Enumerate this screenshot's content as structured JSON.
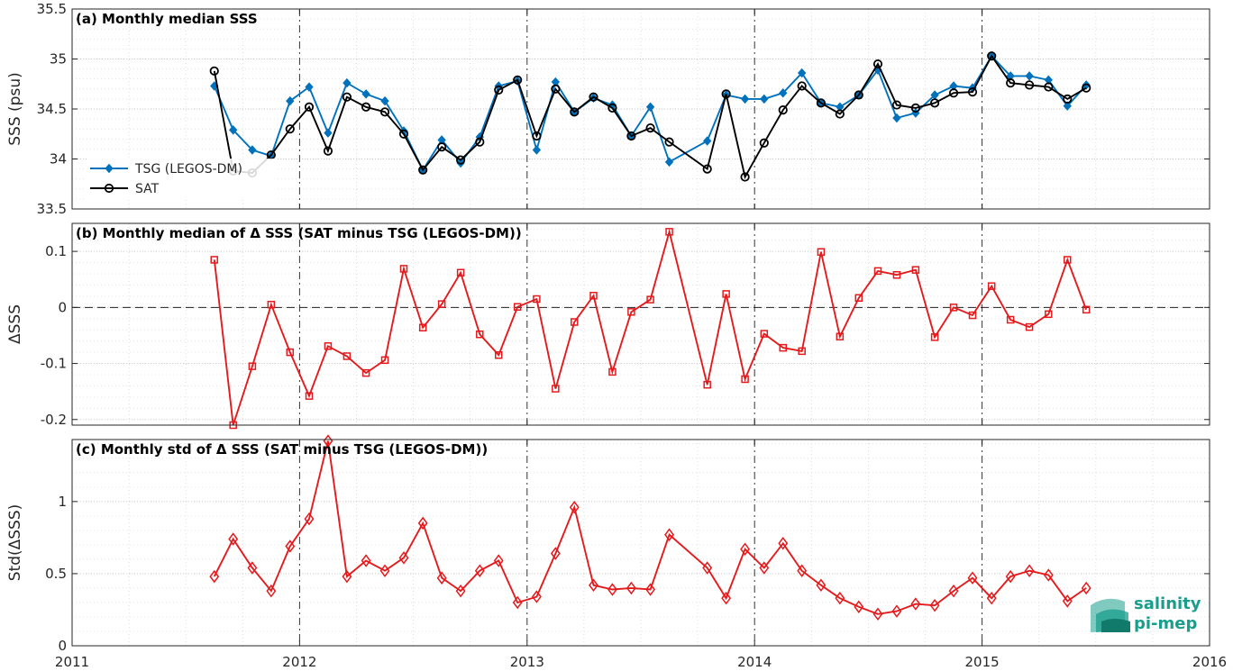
{
  "x_ticks": [
    "2011",
    "2012",
    "2013",
    "2014",
    "2015",
    "2016"
  ],
  "logo": {
    "line1": "salinity",
    "line2": "pi-mep",
    "color": "#1a9e8c"
  },
  "colors": {
    "tsg": "#0072bd",
    "sat": "#000000",
    "delta": "#e41a1c"
  },
  "chart_data": [
    {
      "type": "line",
      "title": "(a) Monthly median SSS",
      "ylabel": "SSS (psu)",
      "xlim": [
        2011,
        2016
      ],
      "ylim": [
        33.5,
        35.5
      ],
      "yticks": [
        33.5,
        34,
        34.5,
        35,
        35.5
      ],
      "ytick_labels": [
        "33.5",
        "34",
        "34.5",
        "35",
        "35.5"
      ],
      "grid": true,
      "legend_position": "left",
      "x": [
        2011.625,
        2011.708,
        2011.792,
        2011.875,
        2011.958,
        2012.042,
        2012.125,
        2012.208,
        2012.292,
        2012.375,
        2012.458,
        2012.542,
        2012.625,
        2012.708,
        2012.792,
        2012.875,
        2012.958,
        2013.042,
        2013.125,
        2013.208,
        2013.292,
        2013.375,
        2013.458,
        2013.542,
        2013.625,
        2013.792,
        2013.875,
        2013.958,
        2014.042,
        2014.125,
        2014.208,
        2014.292,
        2014.375,
        2014.458,
        2014.542,
        2014.625,
        2014.708,
        2014.792,
        2014.875,
        2014.958,
        2015.042,
        2015.125,
        2015.208,
        2015.292,
        2015.375,
        2015.458
      ],
      "series": [
        {
          "name": "TSG (LEGOS-DM)",
          "marker": "diamond",
          "values": [
            34.73,
            34.29,
            34.09,
            34.03,
            34.58,
            34.72,
            34.26,
            34.76,
            34.65,
            34.58,
            34.28,
            33.89,
            34.19,
            33.96,
            34.22,
            34.73,
            34.78,
            34.09,
            34.77,
            34.47,
            34.61,
            34.54,
            34.23,
            34.52,
            33.97,
            34.18,
            34.64,
            34.6,
            34.6,
            34.66,
            34.86,
            34.56,
            34.52,
            34.64,
            34.89,
            34.41,
            34.46,
            34.64,
            34.73,
            34.71,
            35.03,
            34.83,
            34.83,
            34.79,
            34.53,
            34.74
          ]
        },
        {
          "name": "SAT",
          "marker": "circle",
          "values": [
            34.88,
            33.88,
            33.86,
            34.04,
            34.3,
            34.52,
            34.08,
            34.62,
            34.52,
            34.47,
            34.25,
            33.89,
            34.12,
            33.99,
            34.17,
            34.69,
            34.79,
            34.23,
            34.7,
            34.47,
            34.62,
            34.51,
            34.23,
            34.31,
            34.17,
            33.9,
            34.65,
            33.82,
            34.16,
            34.49,
            34.73,
            34.56,
            34.45,
            34.64,
            34.95,
            34.54,
            34.51,
            34.56,
            34.66,
            34.67,
            35.03,
            34.76,
            34.74,
            34.72,
            34.6,
            34.71
          ]
        }
      ]
    },
    {
      "type": "line",
      "title": "(b) Monthly median of Δ SSS (SAT minus TSG (LEGOS-DM))",
      "ylabel": "ΔSSS",
      "xlim": [
        2011,
        2016
      ],
      "ylim": [
        -0.21,
        0.15
      ],
      "yticks": [
        -0.2,
        -0.1,
        0,
        0.1
      ],
      "ytick_labels": [
        "-0.2",
        "-0.1",
        "0",
        "0.1"
      ],
      "zero_line": true,
      "grid": true,
      "x": [
        2011.625,
        2011.708,
        2011.792,
        2011.875,
        2011.958,
        2012.042,
        2012.125,
        2012.208,
        2012.292,
        2012.375,
        2012.458,
        2012.542,
        2012.625,
        2012.708,
        2012.792,
        2012.875,
        2012.958,
        2013.042,
        2013.125,
        2013.208,
        2013.292,
        2013.375,
        2013.458,
        2013.542,
        2013.625,
        2013.792,
        2013.875,
        2013.958,
        2014.042,
        2014.125,
        2014.208,
        2014.292,
        2014.375,
        2014.458,
        2014.542,
        2014.625,
        2014.708,
        2014.792,
        2014.875,
        2014.958,
        2015.042,
        2015.125,
        2015.208,
        2015.292,
        2015.375,
        2015.458
      ],
      "series": [
        {
          "marker": "square",
          "values": [
            0.085,
            -0.21,
            -0.105,
            0.005,
            -0.08,
            -0.158,
            -0.069,
            -0.087,
            -0.117,
            -0.094,
            0.069,
            -0.036,
            0.006,
            0.062,
            -0.048,
            -0.085,
            0.001,
            0.015,
            -0.145,
            -0.026,
            0.021,
            -0.115,
            -0.008,
            0.014,
            0.135,
            -0.138,
            0.024,
            -0.128,
            -0.047,
            -0.072,
            -0.078,
            0.099,
            -0.052,
            0.017,
            0.065,
            0.058,
            0.067,
            -0.053,
            0.0,
            -0.014,
            0.038,
            -0.022,
            -0.035,
            -0.012,
            0.085,
            -0.004
          ]
        }
      ]
    },
    {
      "type": "line",
      "title": "(c) Monthly std of Δ SSS (SAT minus TSG (LEGOS-DM))",
      "ylabel": "Std(ΔSSS)",
      "xlim": [
        2011,
        2016
      ],
      "ylim": [
        0,
        1.43
      ],
      "yticks": [
        0,
        0.5,
        1
      ],
      "ytick_labels": [
        "0",
        "0.5",
        "1"
      ],
      "grid": true,
      "x": [
        2011.625,
        2011.708,
        2011.792,
        2011.875,
        2011.958,
        2012.042,
        2012.125,
        2012.208,
        2012.292,
        2012.375,
        2012.458,
        2012.542,
        2012.625,
        2012.708,
        2012.792,
        2012.875,
        2012.958,
        2013.042,
        2013.125,
        2013.208,
        2013.292,
        2013.375,
        2013.458,
        2013.542,
        2013.625,
        2013.792,
        2013.875,
        2013.958,
        2014.042,
        2014.125,
        2014.208,
        2014.292,
        2014.375,
        2014.458,
        2014.542,
        2014.625,
        2014.708,
        2014.792,
        2014.875,
        2014.958,
        2015.042,
        2015.125,
        2015.208,
        2015.292,
        2015.375,
        2015.458
      ],
      "series": [
        {
          "marker": "diamond",
          "values": [
            0.48,
            0.74,
            0.54,
            0.38,
            0.69,
            0.88,
            1.42,
            0.48,
            0.59,
            0.52,
            0.61,
            0.85,
            0.47,
            0.38,
            0.52,
            0.59,
            0.3,
            0.34,
            0.64,
            0.96,
            0.42,
            0.39,
            0.4,
            0.39,
            0.77,
            0.54,
            0.33,
            0.67,
            0.54,
            0.71,
            0.52,
            0.42,
            0.33,
            0.27,
            0.22,
            0.24,
            0.29,
            0.28,
            0.38,
            0.47,
            0.33,
            0.48,
            0.52,
            0.49,
            0.31,
            0.4
          ]
        }
      ]
    }
  ]
}
